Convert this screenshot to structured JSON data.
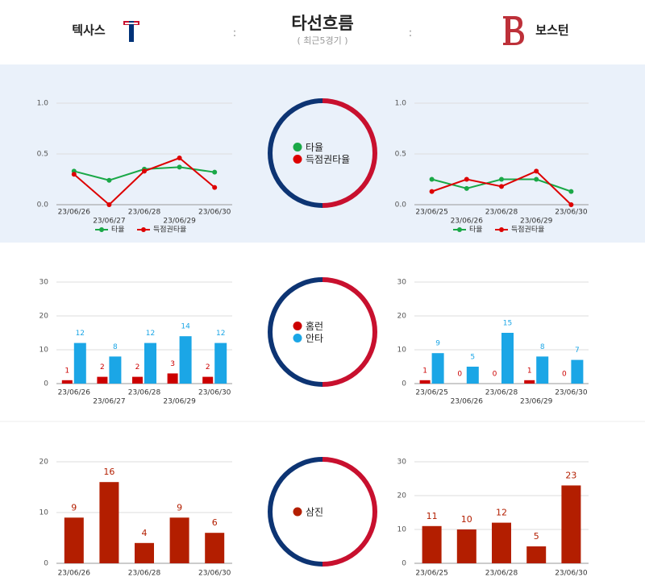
{
  "header": {
    "home": "텍사스",
    "away": "보스턴",
    "title": "타선흐름",
    "subtitle": "( 최근5경기 )",
    "separator": ":"
  },
  "chart_data": [
    {
      "type": "line",
      "categories": [
        "23/06/26",
        "23/06/27",
        "23/06/28",
        "23/06/29",
        "23/06/30"
      ],
      "series": [
        {
          "name": "타율",
          "color": "#1aa847",
          "values": [
            0.33,
            0.24,
            0.35,
            0.37,
            0.32
          ]
        },
        {
          "name": "득점권타율",
          "color": "#dd0000",
          "values": [
            0.3,
            0.0,
            0.33,
            0.46,
            0.17
          ]
        }
      ],
      "ylim": [
        0,
        1
      ],
      "yticks": [
        {
          "value": 0,
          "label": "0.0"
        },
        {
          "value": 0.5,
          "label": "0.5"
        },
        {
          "value": 1,
          "label": "1.0"
        }
      ],
      "grid": true,
      "legend": "bottom"
    },
    {
      "type": "line",
      "categories": [
        "23/06/25",
        "23/06/26",
        "23/06/28",
        "23/06/29",
        "23/06/30"
      ],
      "series": [
        {
          "name": "타율",
          "color": "#1aa847",
          "values": [
            0.25,
            0.16,
            0.25,
            0.25,
            0.13
          ]
        },
        {
          "name": "득점권타율",
          "color": "#dd0000",
          "values": [
            0.13,
            0.25,
            0.18,
            0.33,
            0.0
          ]
        }
      ],
      "ylim": [
        0,
        1
      ],
      "yticks": [
        {
          "value": 0,
          "label": "0.0"
        },
        {
          "value": 0.5,
          "label": "0.5"
        },
        {
          "value": 1,
          "label": "1.0"
        }
      ],
      "grid": true,
      "legend": "bottom"
    },
    {
      "type": "bar",
      "categories": [
        "23/06/26",
        "23/06/27",
        "23/06/28",
        "23/06/29",
        "23/06/30"
      ],
      "series": [
        {
          "name": "홈런",
          "color": "#cc0000",
          "values": [
            1,
            2,
            2,
            3,
            2
          ]
        },
        {
          "name": "안타",
          "color": "#1ba6e6",
          "values": [
            12,
            8,
            12,
            14,
            12
          ]
        }
      ],
      "ylim": [
        0,
        30
      ],
      "yticks": [
        0,
        10,
        20,
        30
      ],
      "grid": true
    },
    {
      "type": "bar",
      "categories": [
        "23/06/25",
        "23/06/26",
        "23/06/28",
        "23/06/29",
        "23/06/30"
      ],
      "series": [
        {
          "name": "홈런",
          "color": "#cc0000",
          "values": [
            1,
            0,
            0,
            1,
            0
          ]
        },
        {
          "name": "안타",
          "color": "#1ba6e6",
          "values": [
            9,
            5,
            15,
            8,
            7
          ]
        }
      ],
      "ylim": [
        0,
        30
      ],
      "yticks": [
        0,
        10,
        20,
        30
      ],
      "grid": true
    },
    {
      "type": "bar",
      "categories": [
        "23/06/26",
        null,
        "23/06/28",
        null,
        "23/06/30"
      ],
      "series": [
        {
          "name": "삼진",
          "color": "#b31e00",
          "values": [
            9,
            16,
            4,
            9,
            6
          ]
        }
      ],
      "ylim": [
        0,
        20
      ],
      "yticks": [
        0,
        10,
        20
      ],
      "grid": true
    },
    {
      "type": "bar",
      "categories": [
        "23/06/25",
        null,
        "23/06/28",
        null,
        "23/06/30"
      ],
      "series": [
        {
          "name": "삼진",
          "color": "#b31e00",
          "values": [
            11,
            10,
            12,
            5,
            23
          ]
        }
      ],
      "ylim": [
        0,
        30
      ],
      "yticks": [
        0,
        10,
        20,
        30
      ],
      "grid": true
    }
  ]
}
